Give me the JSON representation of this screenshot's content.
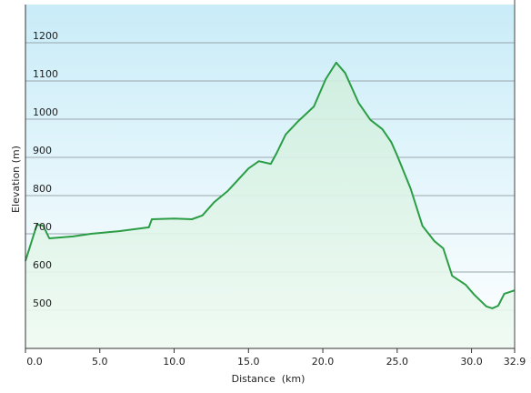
{
  "chart_data": {
    "type": "area",
    "x_label": "Distance  (km)",
    "y_label": "Elevation (m)",
    "x": [
      0,
      0.77,
      1.2,
      1.6,
      3.2,
      4.4,
      6.3,
      8.3,
      8.5,
      10.0,
      11.2,
      11.9,
      12.7,
      13.6,
      15.0,
      15.7,
      16.5,
      16.9,
      17.5,
      18.3,
      19.4,
      20.2,
      20.9,
      21.5,
      22.4,
      23.2,
      24.0,
      24.6,
      25.0,
      25.9,
      26.7,
      27.5,
      28.1,
      28.7,
      29.6,
      30.2,
      31.0,
      31.4,
      31.8,
      32.2,
      32.9
    ],
    "values": [
      629,
      724,
      721,
      688,
      693,
      700,
      707,
      717,
      738,
      740,
      738,
      748,
      783,
      812,
      871,
      890,
      883,
      912,
      960,
      993,
      1033,
      1105,
      1148,
      1121,
      1043,
      998,
      974,
      940,
      905,
      819,
      721,
      681,
      662,
      590,
      567,
      540,
      510,
      505,
      512,
      543,
      552
    ],
    "color": "#2a9d45",
    "xlim": [
      0,
      32.9
    ],
    "ylim": [
      400,
      1300
    ],
    "xticks": [
      {
        "value": 0,
        "label": "0.0"
      },
      {
        "value": 5,
        "label": "5.0"
      },
      {
        "value": 10,
        "label": "10.0"
      },
      {
        "value": 15,
        "label": "15.0"
      },
      {
        "value": 20,
        "label": "20.0"
      },
      {
        "value": 25,
        "label": "25.0"
      },
      {
        "value": 30,
        "label": "30.0"
      },
      32.9
    ],
    "yticks": [
      500,
      600,
      700,
      800,
      900,
      1000,
      1100,
      1200
    ],
    "grid": true
  }
}
